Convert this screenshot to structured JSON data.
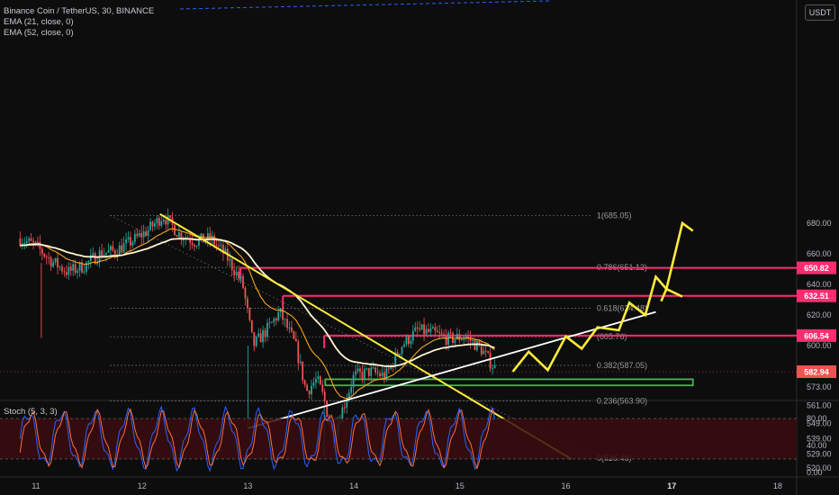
{
  "header": {
    "symbol_line": "Binance Coin / TetherUS, 30, BINANCE",
    "ema1": "EMA (21, close, 0)",
    "ema2": "EMA (52, close, 0)",
    "currency": "USDT"
  },
  "stoch": {
    "title": "Stoch (5, 3, 3)",
    "ticks": [
      "80.00",
      "40.00",
      "0.00"
    ]
  },
  "colors": {
    "background": "#0d0d0d",
    "up_candle": "#26a69a",
    "down_candle": "#ef5350",
    "resistance": "#ff2d6f",
    "trendline": "#ffffff",
    "projection": "#ffeb3b",
    "support_box": "#4caf50",
    "ema21": "#f5a623",
    "ema52": "#fff6d0",
    "stoch_k": "#2962ff",
    "stoch_d": "#ff6d3a"
  },
  "chart_data": {
    "type": "candlestick",
    "x_ticks": [
      "11",
      "12",
      "13",
      "14",
      "15",
      "16",
      "17",
      "18"
    ],
    "y_ticks": [
      "680.00",
      "660.00",
      "640.00",
      "620.00",
      "600.00",
      "573.00",
      "561.00",
      "549.00",
      "539.00",
      "529.00",
      "520.00"
    ],
    "fib_levels": [
      {
        "label": "1(685.05)",
        "value": 685.05
      },
      {
        "label": "0.786(651.12)",
        "value": 651.12
      },
      {
        "label": "0.618(624.48)",
        "value": 624.48
      },
      {
        "label": "(605.76)",
        "value": 605.76
      },
      {
        "label": "0.382(587.05)",
        "value": 587.05
      },
      {
        "label": "0.236(563.90)",
        "value": 563.9
      },
      {
        "label": "0(526.48)",
        "value": 526.48
      }
    ],
    "resistance_levels": [
      {
        "label": "650.82",
        "value": 650.82
      },
      {
        "label": "632.51",
        "value": 632.51
      },
      {
        "label": "606.54",
        "value": 606.54
      }
    ],
    "current_price": {
      "label": "582.94",
      "value": 582.94
    },
    "support_zone": [
      574,
      578
    ],
    "downtrend_line": [
      [
        12.17,
        686
      ],
      [
        16.05,
        526
      ]
    ],
    "uptrend_line": [
      [
        13.0,
        546
      ],
      [
        16.85,
        622
      ]
    ],
    "projection_path": [
      [
        15.5,
        583
      ],
      [
        15.65,
        596
      ],
      [
        15.83,
        584
      ],
      [
        16.0,
        606
      ],
      [
        16.15,
        598
      ],
      [
        16.3,
        612
      ],
      [
        16.5,
        610
      ],
      [
        16.6,
        628
      ],
      [
        16.75,
        620
      ],
      [
        16.85,
        645
      ],
      [
        16.95,
        637
      ],
      [
        17.1,
        680
      ],
      [
        17.2,
        675
      ]
    ],
    "price_path": [
      [
        10.85,
        670
      ],
      [
        11.0,
        665
      ],
      [
        11.15,
        655
      ],
      [
        11.3,
        648
      ],
      [
        11.45,
        652
      ],
      [
        11.6,
        660
      ],
      [
        11.75,
        662
      ],
      [
        11.9,
        668
      ],
      [
        12.05,
        675
      ],
      [
        12.2,
        685
      ],
      [
        12.35,
        673
      ],
      [
        12.5,
        668
      ],
      [
        12.65,
        670
      ],
      [
        12.8,
        658
      ],
      [
        12.95,
        640
      ],
      [
        13.05,
        600
      ],
      [
        13.2,
        612
      ],
      [
        13.3,
        622
      ],
      [
        13.45,
        600
      ],
      [
        13.55,
        570
      ],
      [
        13.65,
        578
      ],
      [
        13.72,
        565
      ],
      [
        13.8,
        540
      ],
      [
        13.9,
        560
      ],
      [
        14.0,
        580
      ],
      [
        14.15,
        583
      ],
      [
        14.3,
        580
      ],
      [
        14.45,
        600
      ],
      [
        14.6,
        610
      ],
      [
        14.75,
        608
      ],
      [
        14.9,
        604
      ],
      [
        15.05,
        606
      ],
      [
        15.2,
        598
      ],
      [
        15.35,
        583
      ]
    ],
    "ylim": [
      515,
      695
    ],
    "xlim": [
      10.7,
      18.2
    ]
  }
}
